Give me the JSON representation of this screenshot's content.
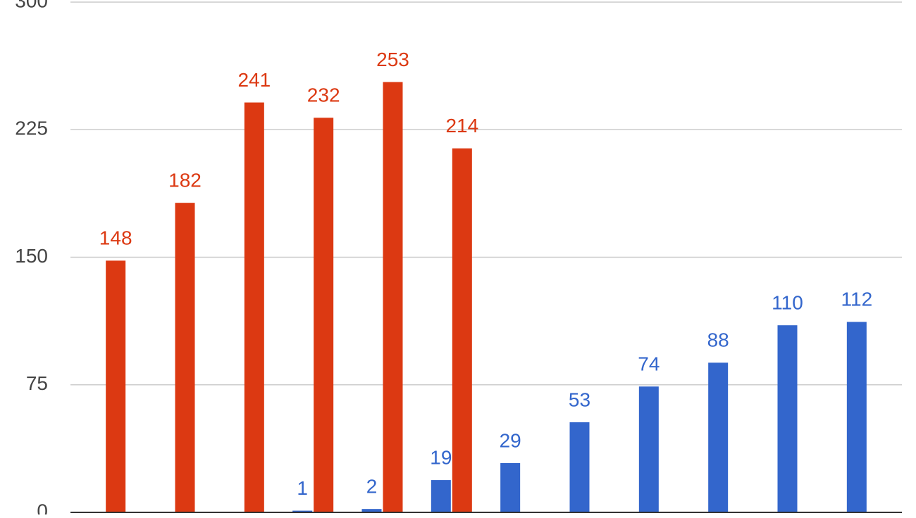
{
  "chart_data": {
    "type": "bar",
    "categories": [
      null,
      null,
      null,
      null,
      null,
      null,
      null,
      null,
      null,
      null,
      null,
      null
    ],
    "series": [
      {
        "color": "#3366cc",
        "values": [
          null,
          null,
          null,
          1,
          2,
          19,
          29,
          53,
          74,
          88,
          110,
          112
        ]
      },
      {
        "color": "#dc3912",
        "values": [
          148,
          182,
          241,
          232,
          253,
          214,
          null,
          null,
          null,
          null,
          null,
          null
        ]
      }
    ],
    "ylim": [
      0,
      300
    ],
    "yticks": [
      0,
      75,
      150,
      225,
      300
    ],
    "grid": true
  }
}
